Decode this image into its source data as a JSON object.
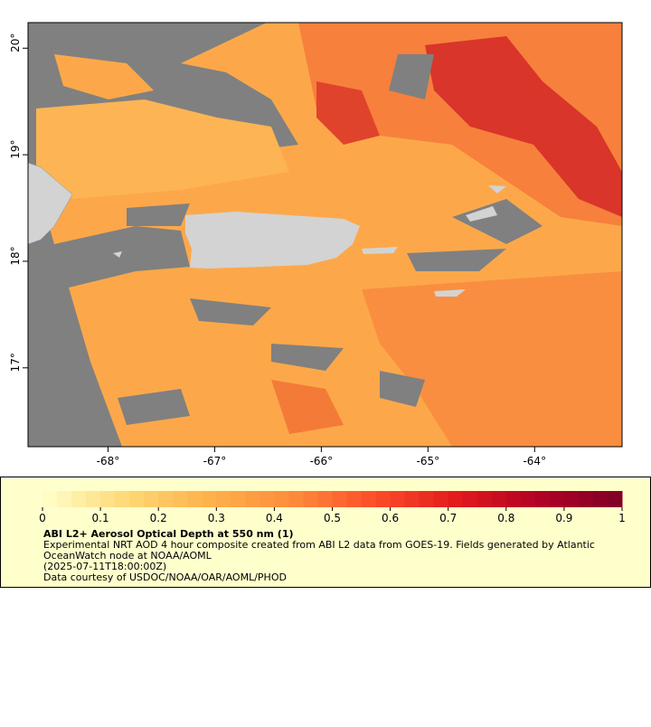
{
  "map": {
    "xlim": [
      -68.75,
      -63.18
    ],
    "ylim": [
      16.26,
      20.24
    ],
    "xticks": [
      {
        "value": -68,
        "label": "-68°"
      },
      {
        "value": -67,
        "label": "-67°"
      },
      {
        "value": -66,
        "label": "-66°"
      },
      {
        "value": -65,
        "label": "-65°"
      },
      {
        "value": -64,
        "label": "-64°"
      }
    ],
    "yticks": [
      {
        "value": 20,
        "label": "20°"
      },
      {
        "value": 19,
        "label": "19°"
      },
      {
        "value": 18,
        "label": "18°"
      },
      {
        "value": 17,
        "label": "17°"
      }
    ]
  },
  "colorbar": {
    "lim": [
      0,
      1
    ],
    "ticks": [
      0,
      0.1,
      0.2,
      0.3,
      0.4,
      0.5,
      0.6,
      0.7,
      0.8,
      0.9,
      1
    ],
    "colors": [
      "#ffffcc",
      "#fed976",
      "#feb24c",
      "#fd8d3c",
      "#fc4e2a",
      "#e31a1c",
      "#b10026",
      "#800026"
    ]
  },
  "legend": {
    "title": "ABI L2+ Aerosol Optical Depth at 550 nm (1)",
    "lines": [
      "Experimental NRT AOD 4 hour composite created from ABI L2 data from GOES-19. Fields generated by Atlantic",
      "OceanWatch node at NOAA/AOML",
      "(2025-07-11T18:00:00Z)",
      "Data courtesy of USDOC/NOAA/OAR/AOML/PHOD"
    ]
  }
}
